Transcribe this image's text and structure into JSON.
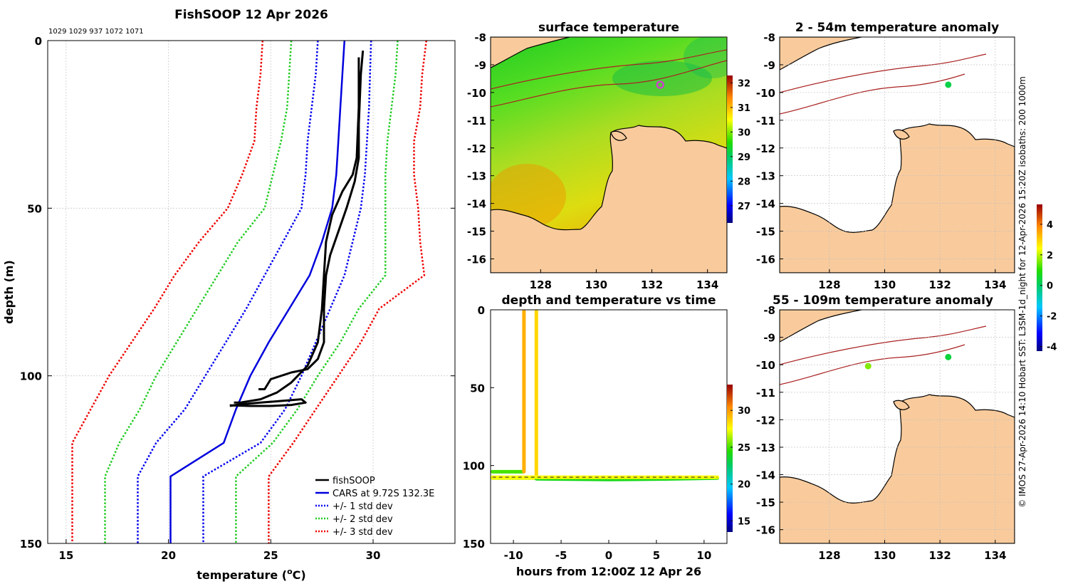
{
  "chart_data": [
    {
      "type": "line",
      "id": "profile",
      "title": "FishSOOP 12 Apr 2026",
      "subtitle": "1029 1029 937 1072 1071",
      "xlabel": "temperature (°C)",
      "xlabel_main": "temperature (",
      "xlabel_unit_o": "o",
      "xlabel_unit_c": "C)",
      "ylabel": "depth (m)",
      "xlim": [
        14.1,
        34.0
      ],
      "ylim": [
        0,
        150
      ],
      "xticks": [
        15,
        20,
        25,
        30
      ],
      "yticks": [
        0,
        50,
        100,
        150
      ],
      "depths": [
        0,
        10,
        20,
        30,
        40,
        50,
        60,
        70,
        80,
        90,
        100,
        110,
        120,
        130,
        140,
        150
      ],
      "series": [
        {
          "name": "CARS at 9.72S 132.3E",
          "color": "#0000dd",
          "style": "solid",
          "values": [
            28.6,
            28.5,
            28.4,
            28.3,
            28.2,
            28.0,
            27.5,
            26.9,
            25.9,
            24.9,
            24.0,
            23.3,
            22.7,
            20.1,
            20.1,
            20.1
          ]
        },
        {
          "name": "+1 std dev",
          "color": "#0000ee",
          "style": "dot",
          "values": [
            29.9,
            29.85,
            29.8,
            29.7,
            29.6,
            29.4,
            29.0,
            28.6,
            27.9,
            27.2,
            26.5,
            25.7,
            24.5,
            21.7,
            21.7,
            21.7
          ]
        },
        {
          "name": "-1 std dev",
          "color": "#0000ee",
          "style": "dot",
          "values": [
            27.3,
            27.2,
            27.0,
            26.8,
            26.7,
            26.5,
            25.6,
            24.7,
            23.8,
            22.8,
            21.8,
            20.8,
            19.4,
            18.5,
            18.5,
            18.5
          ]
        },
        {
          "name": "+2 std dev",
          "color": "#22cc22",
          "style": "dot",
          "values": [
            31.2,
            31.1,
            30.9,
            30.7,
            30.6,
            30.6,
            30.6,
            30.6,
            29.3,
            28.4,
            27.3,
            26.3,
            25.1,
            23.3,
            23.3,
            23.3
          ]
        },
        {
          "name": "-2 std dev",
          "color": "#22cc22",
          "style": "dot",
          "values": [
            26.0,
            25.9,
            25.8,
            25.5,
            25.1,
            24.7,
            23.4,
            22.4,
            21.4,
            20.4,
            19.4,
            18.6,
            17.6,
            16.9,
            16.9,
            16.9
          ]
        },
        {
          "name": "+3 std dev",
          "color": "#ee0000",
          "style": "dot",
          "values": [
            32.6,
            32.4,
            32.3,
            32.0,
            32.0,
            32.2,
            32.3,
            32.5,
            30.3,
            29.4,
            28.3,
            27.2,
            26.1,
            24.9,
            24.9,
            24.9
          ]
        },
        {
          "name": "-3 std dev",
          "color": "#ee0000",
          "style": "dot",
          "values": [
            24.6,
            24.5,
            24.3,
            24.2,
            23.6,
            22.9,
            21.5,
            20.3,
            19.3,
            18.2,
            17.1,
            16.2,
            15.3,
            15.3,
            15.3,
            15.3
          ]
        }
      ],
      "fishsoop": {
        "name": "fishSOOP",
        "color": "#000000",
        "casts": [
          {
            "temp": [
              29.5,
              29.4,
              29.3,
              29.3,
              29.1,
              28.7,
              28.3,
              27.9,
              27.7,
              27.6,
              27.6,
              27.3,
              26.8,
              26.0,
              25.0,
              24.7,
              24.4
            ],
            "depth": [
              3,
              10,
              25,
              35,
              42,
              50,
              57,
              64,
              70,
              80,
              90,
              95,
              98,
              99,
              101,
              104,
              104
            ]
          },
          {
            "temp": [
              29.3,
              29.3,
              29.2,
              29.0,
              28.5,
              28.0,
              27.7,
              27.6,
              27.5,
              27.3,
              26.8,
              26.0,
              25.3,
              24.5,
              23.5,
              23.2
            ],
            "depth": [
              5,
              20,
              35,
              40,
              45,
              52,
              60,
              70,
              80,
              90,
              97,
              102,
              105,
              107,
              108,
              108
            ]
          },
          {
            "temp": [
              23.0,
              23.5,
              24.5,
              25.5,
              26.5,
              26.7,
              26.0,
              25.0,
              24.0,
              23.0
            ],
            "depth": [
              109,
              108.5,
              108,
              107.5,
              107,
              108,
              108.7,
              109,
              109,
              108.8
            ]
          }
        ]
      },
      "legend_position": "bottom-right",
      "legend": [
        {
          "label": "fishSOOP",
          "color": "#000000",
          "style": "solid"
        },
        {
          "label": "CARS at 9.72S 132.3E",
          "color": "#0000dd",
          "style": "solid"
        },
        {
          "label": "+/- 1 std dev",
          "color": "#0000ee",
          "style": "dot"
        },
        {
          "label": "+/- 2 std dev",
          "color": "#22cc22",
          "style": "dot"
        },
        {
          "label": "+/- 3 std dev",
          "color": "#ee0000",
          "style": "dot"
        }
      ]
    },
    {
      "type": "heatmap",
      "id": "sst",
      "title": "surface temperature",
      "xlim": [
        126.2,
        134.7
      ],
      "ylim": [
        -16.5,
        -8
      ],
      "xticks": [
        128,
        130,
        132,
        134
      ],
      "yticks": [
        -8,
        -9,
        -10,
        -11,
        -12,
        -13,
        -14,
        -15,
        -16
      ],
      "colorbar": {
        "min": 26.3,
        "max": 32.3,
        "ticks": [
          27,
          28,
          29,
          30,
          31,
          32
        ]
      },
      "marker": {
        "lon": 132.3,
        "lat": -9.72,
        "color": "#cc44cc"
      }
    },
    {
      "type": "scatter",
      "id": "depth_time",
      "title": "depth and temperature vs time",
      "xlabel": "hours from 12:00Z 12 Apr 26",
      "xlim": [
        -12.4,
        12.4
      ],
      "ylim": [
        0,
        150
      ],
      "xticks": [
        -10,
        -5,
        0,
        5,
        10
      ],
      "yticks": [
        0,
        50,
        100,
        150
      ],
      "colorbar": {
        "min": 13.5,
        "max": 33.5,
        "ticks": [
          15,
          20,
          25,
          30
        ]
      },
      "segments": [
        {
          "hours": [
            -12.2,
            -9.0
          ],
          "depth": [
            104,
            104
          ],
          "temp": 25
        },
        {
          "hours": [
            -8.9,
            -8.9
          ],
          "depth": [
            104,
            1
          ],
          "temp": 29.5
        },
        {
          "hours": [
            -7.6,
            -7.6
          ],
          "depth": [
            108,
            1
          ],
          "temp": 28.5
        },
        {
          "hours": [
            -12.2,
            -7.6
          ],
          "depth": [
            108,
            108
          ],
          "temp": 27
        },
        {
          "hours": [
            -7.6,
            0,
            6,
            11.4
          ],
          "depth": [
            108.5,
            109,
            108.6,
            108
          ],
          "temp": 24
        },
        {
          "hours": [
            -12.2,
            11.4
          ],
          "depth": [
            107.5,
            107.5
          ],
          "temp": 27.5
        }
      ]
    },
    {
      "type": "heatmap",
      "id": "anom1",
      "title": "2 - 54m temperature anomaly",
      "xlim": [
        126.2,
        134.7
      ],
      "ylim": [
        -16.5,
        -8
      ],
      "xticks": [
        128,
        130,
        132,
        134
      ],
      "yticks": [
        -8,
        -9,
        -10,
        -11,
        -12,
        -13,
        -14,
        -15,
        -16
      ],
      "points": [
        {
          "lon": 132.3,
          "lat": -9.72,
          "anomaly": 0.3
        }
      ]
    },
    {
      "type": "heatmap",
      "id": "anom2",
      "title": "55 - 109m temperature anomaly",
      "xlim": [
        126.2,
        134.7
      ],
      "ylim": [
        -16.5,
        -8
      ],
      "xticks": [
        128,
        130,
        132,
        134
      ],
      "yticks": [
        -8,
        -9,
        -10,
        -11,
        -12,
        -13,
        -14,
        -15,
        -16
      ],
      "points": [
        {
          "lon": 132.3,
          "lat": -9.72,
          "anomaly": 0.4
        },
        {
          "lon": 129.4,
          "lat": -10.05,
          "anomaly": 1.6
        }
      ],
      "colorbar": {
        "min": -4.3,
        "max": 5.3,
        "ticks": [
          -4,
          -2,
          0,
          2,
          4
        ]
      }
    }
  ],
  "side_note": "© IMOS 27-Apr-2026 14:10 Hobart SST: L3SM-1d_night for 12-Apr-2026 15:20Z isobaths: 200  1000m"
}
